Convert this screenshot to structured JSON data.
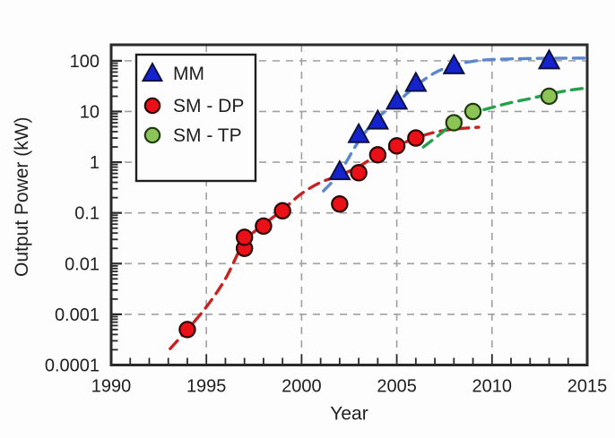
{
  "figure": {
    "background": "#fdfdfd"
  },
  "chart_data": {
    "type": "scatter",
    "title": "",
    "xlabel": "Year",
    "ylabel": "Output Power (kW)",
    "x_ticks": [
      1990,
      1995,
      2000,
      2005,
      2010,
      2015
    ],
    "y_ticks": [
      100,
      10,
      1,
      0.1,
      0.01,
      0.001,
      0.0001
    ],
    "y_tick_labels": [
      "100",
      "10",
      "1",
      "0.1",
      "0.01",
      "0.001",
      "0.0001"
    ],
    "xlim": [
      1990,
      2015
    ],
    "ylim": [
      0.0001,
      207
    ],
    "y_scale": "log",
    "grid": true,
    "grid_color": "#a0a0a0",
    "axis_color": "#2a2a2a",
    "legend": {
      "position": "top-left",
      "entries": [
        "MM",
        "SM - DP",
        "SM - TP"
      ]
    },
    "series": [
      {
        "name": "MM",
        "marker": "triangle",
        "fill": "#1523cf",
        "edge": "#0d1040",
        "trend_color": "#5b87cf",
        "points": [
          [
            2002,
            0.65
          ],
          [
            2003,
            3.5
          ],
          [
            2004,
            6.5
          ],
          [
            2005,
            16
          ],
          [
            2006,
            36
          ],
          [
            2008,
            80
          ],
          [
            2013,
            100
          ]
        ],
        "trend": [
          [
            2001.15,
            0.27
          ],
          [
            2002,
            0.62
          ],
          [
            2003,
            2.6
          ],
          [
            2004,
            7.5
          ],
          [
            2005,
            15
          ],
          [
            2006,
            32
          ],
          [
            2007,
            58
          ],
          [
            2008,
            82
          ],
          [
            2009,
            98
          ],
          [
            2010,
            106
          ],
          [
            2011.5,
            110
          ],
          [
            2013,
            112
          ],
          [
            2014.85,
            113
          ]
        ]
      },
      {
        "name": "SM - DP",
        "marker": "circle",
        "fill": "#ea1018",
        "edge": "#2c0404",
        "trend_color": "#c92121",
        "points": [
          [
            1994,
            0.0005
          ],
          [
            1997,
            0.02
          ],
          [
            1997,
            0.033
          ],
          [
            1998,
            0.055
          ],
          [
            1999,
            0.11
          ],
          [
            2002,
            0.15
          ],
          [
            2003,
            0.62
          ],
          [
            2004,
            1.4
          ],
          [
            2005,
            2.1
          ],
          [
            2006,
            3.0
          ]
        ],
        "trend": [
          [
            1993.1,
            0.00021
          ],
          [
            1994,
            0.0005
          ],
          [
            1995,
            0.0014
          ],
          [
            1996,
            0.005
          ],
          [
            1997,
            0.027
          ],
          [
            1998,
            0.058
          ],
          [
            1999,
            0.115
          ],
          [
            2000,
            0.24
          ],
          [
            2001,
            0.4
          ],
          [
            2002,
            0.55
          ],
          [
            2003,
            0.82
          ],
          [
            2004,
            1.4
          ],
          [
            2005,
            2.1
          ],
          [
            2006,
            3.0
          ],
          [
            2007,
            3.9
          ],
          [
            2008,
            4.5
          ],
          [
            2009.3,
            4.9
          ]
        ]
      },
      {
        "name": "SM - TP",
        "marker": "circle",
        "fill": "#8cc455",
        "edge": "#203a10",
        "trend_color": "#23a04c",
        "points": [
          [
            2008,
            6
          ],
          [
            2009,
            10
          ],
          [
            2013,
            20
          ]
        ],
        "trend": [
          [
            2006.4,
            2.0
          ],
          [
            2007.2,
            3.4
          ],
          [
            2008,
            5.8
          ],
          [
            2009,
            9.2
          ],
          [
            2010,
            12
          ],
          [
            2011,
            15
          ],
          [
            2012,
            18
          ],
          [
            2013,
            22
          ],
          [
            2014,
            26
          ],
          [
            2014.9,
            29
          ]
        ]
      }
    ]
  }
}
